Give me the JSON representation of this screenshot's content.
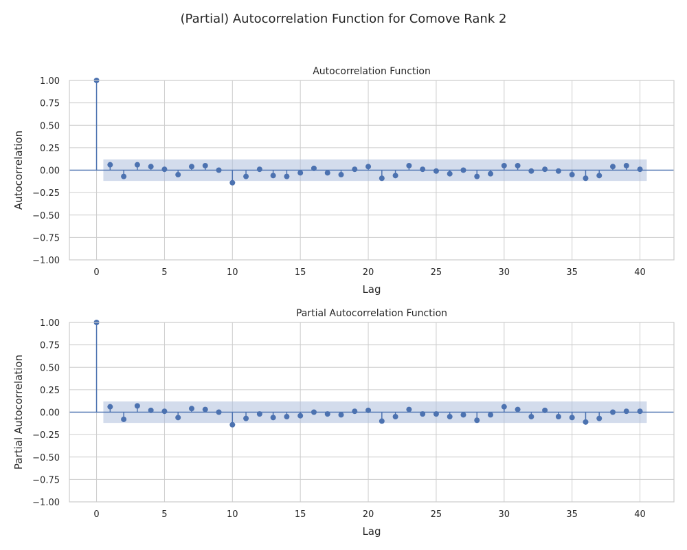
{
  "figure": {
    "suptitle": "(Partial) Autocorrelation Function for Comove Rank 2"
  },
  "colors": {
    "series": "#4c72b0",
    "band": "#aebfdc",
    "grid": "#cccccc",
    "background": "#ffffff"
  },
  "chart_data": [
    {
      "type": "stem",
      "title": "Autocorrelation Function",
      "xlabel": "Lag",
      "ylabel": "Autocorrelation",
      "xlim": [
        -2,
        42.5
      ],
      "ylim": [
        -1,
        1
      ],
      "grid": true,
      "xticks": [
        0,
        5,
        10,
        15,
        20,
        25,
        30,
        35,
        40
      ],
      "yticks": [
        -1,
        -0.75,
        -0.5,
        -0.25,
        0,
        0.25,
        0.5,
        0.75,
        1
      ],
      "xtick_labels": [
        "0",
        "5",
        "10",
        "15",
        "20",
        "25",
        "30",
        "35",
        "40"
      ],
      "ytick_labels": [
        "−1.00",
        "−0.75",
        "−0.50",
        "−0.25",
        "0.00",
        "0.25",
        "0.50",
        "0.75",
        "1.00"
      ],
      "confidence_band": {
        "x_range": [
          0.5,
          40.5
        ],
        "lower": -0.12,
        "upper": 0.12
      },
      "x": [
        0,
        1,
        2,
        3,
        4,
        5,
        6,
        7,
        8,
        9,
        10,
        11,
        12,
        13,
        14,
        15,
        16,
        17,
        18,
        19,
        20,
        21,
        22,
        23,
        24,
        25,
        26,
        27,
        28,
        29,
        30,
        31,
        32,
        33,
        34,
        35,
        36,
        37,
        38,
        39,
        40
      ],
      "values": [
        1.0,
        0.06,
        -0.07,
        0.06,
        0.04,
        0.01,
        -0.05,
        0.04,
        0.05,
        0.0,
        -0.14,
        -0.07,
        0.01,
        -0.06,
        -0.07,
        -0.03,
        0.02,
        -0.03,
        -0.05,
        0.01,
        0.04,
        -0.09,
        -0.06,
        0.05,
        0.01,
        -0.01,
        -0.04,
        0.0,
        -0.07,
        -0.04,
        0.05,
        0.05,
        -0.01,
        0.01,
        -0.01,
        -0.05,
        -0.09,
        -0.06,
        0.04,
        0.05,
        0.01
      ]
    },
    {
      "type": "stem",
      "title": "Partial Autocorrelation Function",
      "xlabel": "Lag",
      "ylabel": "Partial Autocorrelation",
      "xlim": [
        -2,
        42.5
      ],
      "ylim": [
        -1,
        1
      ],
      "grid": true,
      "xticks": [
        0,
        5,
        10,
        15,
        20,
        25,
        30,
        35,
        40
      ],
      "yticks": [
        -1,
        -0.75,
        -0.5,
        -0.25,
        0,
        0.25,
        0.5,
        0.75,
        1
      ],
      "xtick_labels": [
        "0",
        "5",
        "10",
        "15",
        "20",
        "25",
        "30",
        "35",
        "40"
      ],
      "ytick_labels": [
        "−1.00",
        "−0.75",
        "−0.50",
        "−0.25",
        "0.00",
        "0.25",
        "0.50",
        "0.75",
        "1.00"
      ],
      "confidence_band": {
        "x_range": [
          0.5,
          40.5
        ],
        "lower": -0.12,
        "upper": 0.12
      },
      "x": [
        0,
        1,
        2,
        3,
        4,
        5,
        6,
        7,
        8,
        9,
        10,
        11,
        12,
        13,
        14,
        15,
        16,
        17,
        18,
        19,
        20,
        21,
        22,
        23,
        24,
        25,
        26,
        27,
        28,
        29,
        30,
        31,
        32,
        33,
        34,
        35,
        36,
        37,
        38,
        39,
        40
      ],
      "values": [
        1.0,
        0.06,
        -0.08,
        0.07,
        0.02,
        0.01,
        -0.06,
        0.04,
        0.03,
        0.0,
        -0.14,
        -0.07,
        -0.02,
        -0.06,
        -0.05,
        -0.04,
        0.0,
        -0.02,
        -0.03,
        0.01,
        0.02,
        -0.1,
        -0.05,
        0.03,
        -0.02,
        -0.02,
        -0.05,
        -0.03,
        -0.09,
        -0.03,
        0.06,
        0.03,
        -0.05,
        0.02,
        -0.05,
        -0.06,
        -0.11,
        -0.07,
        0.0,
        0.01,
        0.01
      ]
    }
  ]
}
